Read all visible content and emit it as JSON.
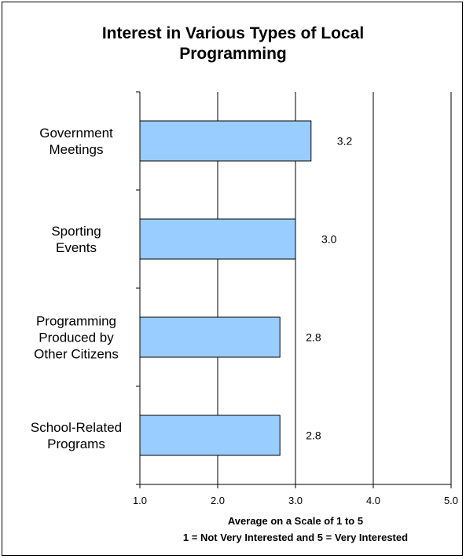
{
  "chart_data": {
    "type": "bar",
    "orientation": "horizontal",
    "title_lines": [
      "Interest in Various Types of Local",
      "Programming"
    ],
    "categories": [
      [
        "Government",
        "Meetings"
      ],
      [
        "Sporting",
        "Events"
      ],
      [
        "Programming",
        "Produced by",
        "Other Citizens"
      ],
      [
        "School-Related",
        "Programs"
      ]
    ],
    "values": [
      3.2,
      3.0,
      2.8,
      2.8
    ],
    "data_labels": [
      "3.2",
      "3.0",
      "2.8",
      "2.8"
    ],
    "xlim": [
      1.0,
      5.0
    ],
    "xticks": [
      1.0,
      2.0,
      3.0,
      4.0,
      5.0
    ],
    "xtick_labels": [
      "1.0",
      "2.0",
      "3.0",
      "4.0",
      "5.0"
    ],
    "xlabel_lines": [
      "Average on a Scale of 1 to 5",
      "1 = Not Very Interested and 5 = Very Interested"
    ],
    "grid": "vertical",
    "legend": "none",
    "colors": {
      "bar_fill": "#99ccff",
      "bar_stroke": "#000000",
      "grid": "#000000"
    }
  }
}
